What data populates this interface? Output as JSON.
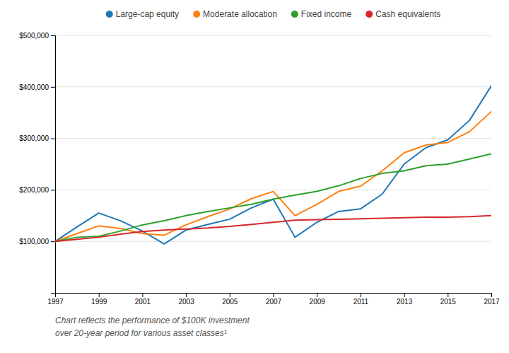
{
  "chart_data": {
    "type": "line",
    "x": [
      1997,
      1998,
      1999,
      2000,
      2001,
      2002,
      2003,
      2004,
      2005,
      2006,
      2007,
      2008,
      2009,
      2010,
      2011,
      2012,
      2013,
      2014,
      2015,
      2016,
      2017
    ],
    "series": [
      {
        "name": "Large-cap equity",
        "values": [
          100000,
          128000,
          155000,
          140000,
          120000,
          95000,
          122000,
          133000,
          143000,
          165000,
          182000,
          108000,
          137000,
          158000,
          163000,
          192000,
          250000,
          282000,
          297000,
          335000,
          402000
        ]
      },
      {
        "name": "Moderate allocation",
        "values": [
          100000,
          115000,
          130000,
          125000,
          115000,
          112000,
          132000,
          148000,
          163000,
          183000,
          197000,
          150000,
          172000,
          197000,
          207000,
          237000,
          272000,
          287000,
          292000,
          313000,
          352000
        ]
      },
      {
        "name": "Fixed income",
        "values": [
          100000,
          108000,
          110000,
          120000,
          132000,
          140000,
          150000,
          158000,
          165000,
          172000,
          182000,
          190000,
          197000,
          208000,
          222000,
          232000,
          237000,
          247000,
          250000,
          260000,
          270000
        ]
      },
      {
        "name": "Cash equivalents",
        "values": [
          100000,
          104000,
          108000,
          114000,
          119000,
          122000,
          124000,
          126000,
          129000,
          133000,
          137000,
          141000,
          142000,
          143000,
          144000,
          145000,
          146000,
          147000,
          147000,
          148000,
          150000
        ]
      }
    ],
    "xlim": [
      1997,
      2017
    ],
    "xticks": [
      1997,
      1999,
      2001,
      2003,
      2005,
      2007,
      2009,
      2011,
      2013,
      2015,
      2017
    ],
    "ylim": [
      0,
      500000
    ],
    "yticks": [
      {
        "value": 100000,
        "label": "$100,000"
      },
      {
        "value": 200000,
        "label": "$200,000"
      },
      {
        "value": 300000,
        "label": "$300,000"
      },
      {
        "value": 400000,
        "label": "$400,000"
      },
      {
        "value": 500000,
        "label": "$500,000"
      }
    ],
    "grid": true,
    "legend": "top",
    "annotations": [
      "Chart reflects the performance of $100K investment",
      "over 20-year period for various asset classes¹"
    ]
  }
}
